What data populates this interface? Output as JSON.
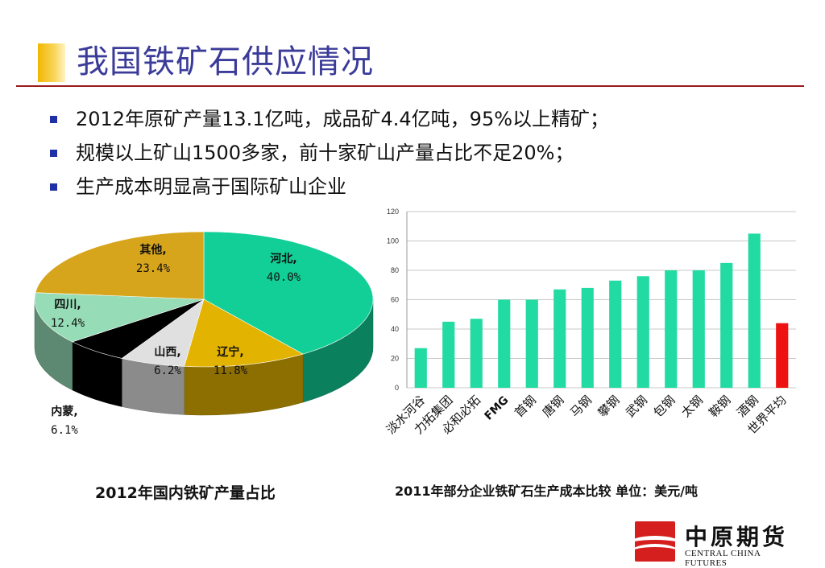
{
  "slide": {
    "title": "我国铁矿石供应情况",
    "bullets": [
      "2012年原矿产量13.1亿吨，成品矿4.4亿吨，95%以上精矿；",
      "规模以上矿山1500多家，前十家矿山产量占比不足20%；",
      "生产成本明显高于国际矿山企业"
    ],
    "logo": {
      "cn": "中原期货",
      "en": "CENTRAL CHINA FUTURES"
    }
  },
  "chart_data": [
    {
      "type": "pie",
      "title": "2012年国内铁矿产量占比",
      "categories": [
        "河北",
        "辽宁",
        "山西",
        "内蒙",
        "四川",
        "其他"
      ],
      "values": [
        40.0,
        11.8,
        6.2,
        6.1,
        12.4,
        23.4
      ],
      "labels": [
        "40.0%",
        "11.8%",
        "6.2%",
        "6.1%",
        "12.4%",
        "23.4%"
      ],
      "colors": [
        "#11cf96",
        "#e2b300",
        "#e0e0e0",
        "#000000",
        "#96dcb6",
        "#d7a51c"
      ]
    },
    {
      "type": "bar",
      "title": "2011年部分企业铁矿石生产成本比较    单位：美元/吨",
      "categories": [
        "淡水河谷",
        "力拓集团",
        "必和必拓",
        "FMG",
        "首钢",
        "唐钢",
        "马钢",
        "攀钢",
        "武钢",
        "包钢",
        "太钢",
        "鞍钢",
        "酒钢",
        "世界平均"
      ],
      "values": [
        27,
        45,
        47,
        60,
        60,
        67,
        68,
        73,
        76,
        80,
        80,
        85,
        105,
        44
      ],
      "ylim": [
        0,
        120
      ],
      "yticks": [
        0,
        20,
        40,
        60,
        80,
        100,
        120
      ],
      "grid": true,
      "bar_color": "#22dba3",
      "highlight_color": "#ee1111"
    }
  ]
}
